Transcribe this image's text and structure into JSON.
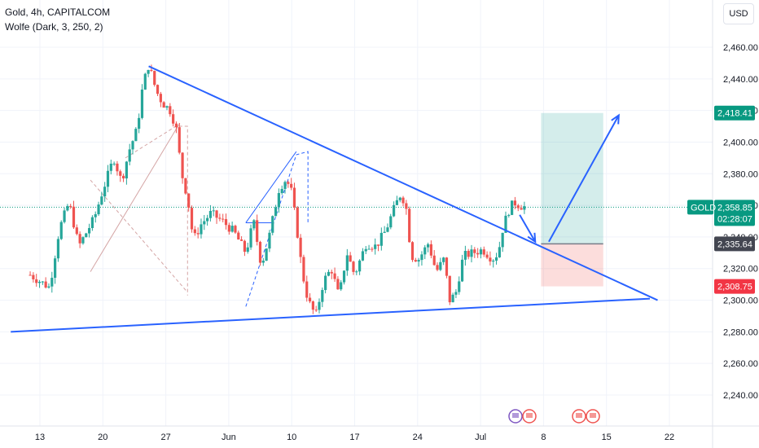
{
  "header": {
    "title": "Gold, 4h, CAPITALCOM",
    "indicator": "Wolfe (Dark, 3, 250, 2)"
  },
  "currency_button": "USD",
  "colors": {
    "up": "#26a69a",
    "down": "#ef5350",
    "trendline": "#2962ff",
    "target_zone": "#26a69a",
    "stop_zone": "#ef5350",
    "price_tag": "#089981",
    "entry_tag": "#434651",
    "stop_tag": "#f23645"
  },
  "price_tags": {
    "target": "2,418.41",
    "symbol": "GOLD",
    "last": "2,358.85",
    "countdown": "02:28:07",
    "entry": "2,335.64",
    "stop": "2,308.75"
  },
  "chart_data": {
    "type": "candlestick",
    "title": "Gold, 4h, CAPITALCOM",
    "y_ticks": [
      "2,460.00",
      "2,440.00",
      "2,420.00",
      "2,400.00",
      "2,380.00",
      "2,360.00",
      "2,340.00",
      "2,320.00",
      "2,300.00",
      "2,280.00",
      "2,260.00",
      "2,240.00"
    ],
    "x_ticks": [
      "13",
      "20",
      "27",
      "Jun",
      "10",
      "17",
      "24",
      "Jul",
      "8",
      "15",
      "22"
    ],
    "ylim": [
      2230,
      2472
    ],
    "price_path": [
      [
        -0.5,
        2316
      ],
      [
        0.5,
        2308
      ],
      [
        1.0,
        2345
      ],
      [
        1.5,
        2362
      ],
      [
        2.0,
        2334
      ],
      [
        2.8,
        2352
      ],
      [
        3.2,
        2368
      ],
      [
        3.8,
        2390
      ],
      [
        4.2,
        2375
      ],
      [
        4.6,
        2395
      ],
      [
        5.0,
        2408
      ],
      [
        5.3,
        2436
      ],
      [
        5.6,
        2449
      ],
      [
        6.0,
        2432
      ],
      [
        6.3,
        2425
      ],
      [
        6.7,
        2420
      ],
      [
        7.0,
        2410
      ],
      [
        7.3,
        2380
      ],
      [
        7.6,
        2365
      ],
      [
        7.9,
        2338
      ],
      [
        8.3,
        2348
      ],
      [
        8.8,
        2355
      ],
      [
        9.4,
        2350
      ],
      [
        10.0,
        2343
      ],
      [
        10.6,
        2330
      ],
      [
        11.0,
        2350
      ],
      [
        11.4,
        2322
      ],
      [
        11.8,
        2340
      ],
      [
        12.3,
        2370
      ],
      [
        12.6,
        2376
      ],
      [
        12.9,
        2372
      ],
      [
        13.2,
        2348
      ],
      [
        13.5,
        2318
      ],
      [
        13.8,
        2300
      ],
      [
        14.2,
        2290
      ],
      [
        14.6,
        2312
      ],
      [
        15.0,
        2320
      ],
      [
        15.4,
        2302
      ],
      [
        15.8,
        2330
      ],
      [
        16.2,
        2316
      ],
      [
        16.8,
        2336
      ],
      [
        17.3,
        2334
      ],
      [
        17.8,
        2344
      ],
      [
        18.3,
        2360
      ],
      [
        18.6,
        2368
      ],
      [
        18.9,
        2356
      ],
      [
        19.1,
        2328
      ],
      [
        19.5,
        2326
      ],
      [
        20.0,
        2336
      ],
      [
        20.4,
        2318
      ],
      [
        20.8,
        2326
      ],
      [
        21.1,
        2300
      ],
      [
        21.4,
        2304
      ],
      [
        21.8,
        2328
      ],
      [
        22.3,
        2330
      ],
      [
        22.8,
        2332
      ],
      [
        23.3,
        2326
      ],
      [
        23.6,
        2330
      ],
      [
        23.8,
        2344
      ],
      [
        24.1,
        2356
      ],
      [
        24.4,
        2362
      ],
      [
        24.7,
        2360
      ],
      [
        25.0,
        2358.85
      ]
    ],
    "wolfe_line_upper": [
      [
        5.6,
        2448
      ],
      [
        31.8,
        2300
      ]
    ],
    "wolfe_line_lower": [
      [
        -1.5,
        2280
      ],
      [
        31.4,
        2301
      ]
    ],
    "arrows": [
      {
        "from": [
          24.7,
          2354
        ],
        "to": [
          25.5,
          2337
        ]
      },
      {
        "from": [
          26.2,
          2337
        ],
        "to": [
          29.8,
          2417
        ]
      }
    ],
    "position": {
      "x_start": 25.8,
      "x_end": 29.0,
      "target": 2418.41,
      "entry": 2335.64,
      "stop": 2308.75
    },
    "last_price": 2358.85,
    "grid": true
  }
}
